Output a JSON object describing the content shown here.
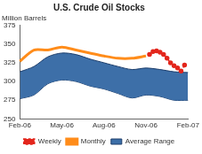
{
  "chart_data": {
    "type": "line",
    "title": "U.S. Crude Oil Stocks",
    "ylabel": "Million Barrels",
    "categories": [
      "Feb-06",
      null,
      null,
      null,
      null,
      null,
      null,
      null,
      null,
      null,
      null,
      null,
      "May-06",
      null,
      null,
      null,
      null,
      null,
      null,
      null,
      null,
      null,
      null,
      null,
      "Aug-06",
      null,
      null,
      null,
      null,
      null,
      null,
      null,
      null,
      null,
      null,
      null,
      "Nov-06",
      null,
      null,
      null,
      null,
      null,
      null,
      null,
      null,
      null,
      null,
      null,
      "Feb-07"
    ],
    "ylim": [
      250,
      375
    ],
    "yticks": [
      250,
      275,
      300,
      325,
      350,
      375
    ],
    "grid": false,
    "legend": "bottom",
    "series": [
      {
        "name": "Monthly",
        "type": "line",
        "color": "#ff8c1a",
        "line_style": "solid",
        "values": [
          327,
          null,
          null,
          null,
          342,
          null,
          null,
          null,
          342,
          null,
          null,
          null,
          346,
          null,
          null,
          null,
          342,
          null,
          null,
          null,
          338,
          null,
          null,
          null,
          334,
          null,
          null,
          null,
          331,
          null,
          null,
          null,
          331,
          null,
          null,
          null,
          334,
          null,
          null,
          null,
          null,
          null,
          null,
          null,
          null,
          null,
          null,
          null,
          null
        ]
      },
      {
        "name": "Weekly",
        "type": "line",
        "color": "#e3261c",
        "line_style": "dashed",
        "marker": "circle",
        "values": [
          null,
          null,
          null,
          null,
          null,
          null,
          null,
          null,
          null,
          null,
          null,
          null,
          null,
          null,
          null,
          null,
          null,
          null,
          null,
          null,
          null,
          null,
          null,
          null,
          null,
          null,
          null,
          null,
          null,
          null,
          null,
          null,
          null,
          null,
          null,
          null,
          null,
          336,
          340,
          341,
          339,
          336,
          331,
          325,
          321,
          318,
          314,
          322,
          null
        ]
      },
      {
        "name": "Average Range",
        "type": "area",
        "color": "#3d6fa8",
        "high": [
          313,
          null,
          null,
          null,
          320,
          null,
          null,
          null,
          333,
          null,
          null,
          null,
          338,
          null,
          null,
          null,
          336,
          null,
          null,
          null,
          330,
          null,
          null,
          null,
          325,
          null,
          null,
          null,
          320,
          null,
          null,
          null,
          316,
          null,
          null,
          null,
          318,
          null,
          null,
          null,
          316,
          null,
          null,
          null,
          313,
          null,
          null,
          null,
          312
        ],
        "low": [
          277,
          null,
          null,
          null,
          282,
          null,
          null,
          null,
          297,
          null,
          null,
          null,
          302,
          null,
          null,
          null,
          300,
          null,
          null,
          null,
          294,
          null,
          null,
          null,
          290,
          null,
          null,
          null,
          284,
          null,
          null,
          null,
          278,
          null,
          null,
          null,
          282,
          null,
          null,
          null,
          280,
          null,
          null,
          null,
          275,
          null,
          null,
          null,
          275
        ]
      }
    ]
  }
}
